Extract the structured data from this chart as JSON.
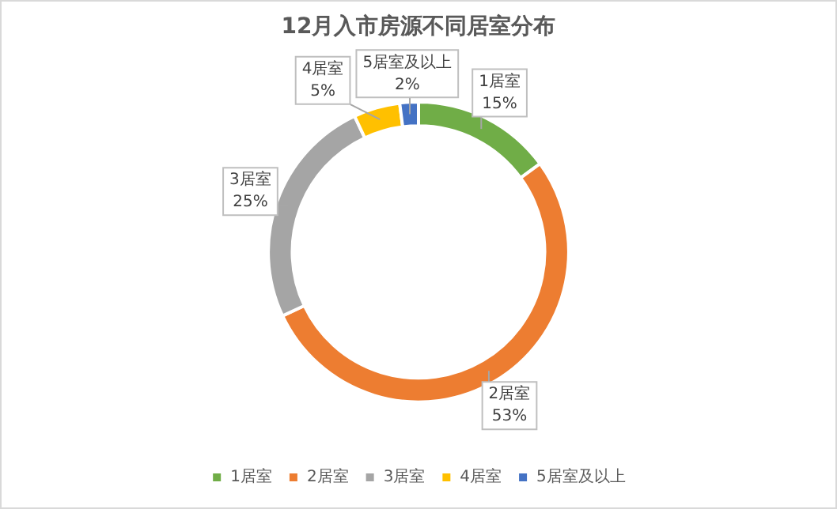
{
  "chart_data": {
    "type": "donut",
    "title": "12月入市房源不同居室分布",
    "categories": [
      "1居室",
      "2居室",
      "3居室",
      "4居室",
      "5居室及以上"
    ],
    "values": [
      15,
      53,
      25,
      5,
      2
    ],
    "value_labels": [
      "15%",
      "53%",
      "25%",
      "5%",
      "2%"
    ],
    "colors": [
      "#70ad47",
      "#ed7d31",
      "#a5a5a5",
      "#ffc000",
      "#4472c4"
    ],
    "legend": "bottom"
  }
}
